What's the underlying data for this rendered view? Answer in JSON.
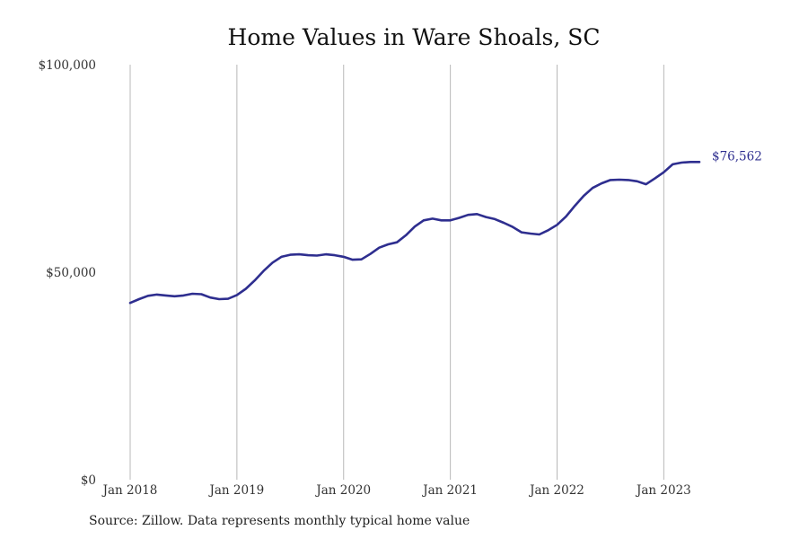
{
  "title": "Home Values in Ware Shoals, SC",
  "source": "Source: Zillow. Data represents monthly typical home value",
  "colors": {
    "line": "#2e2e8f",
    "grid": "#b8b8b8",
    "end_label": "#2e2e8f"
  },
  "chart_data": {
    "type": "line",
    "title": "Home Values in Ware Shoals, SC",
    "xlabel": "",
    "ylabel": "",
    "ylim": [
      0,
      100000
    ],
    "xlim": [
      "2018-01",
      "2023-05"
    ],
    "y_ticks": [
      {
        "value": 0,
        "label": "$0"
      },
      {
        "value": 50000,
        "label": "$50,000"
      },
      {
        "value": 100000,
        "label": "$100,000"
      }
    ],
    "x_ticks": [
      {
        "date": "2018-01",
        "label": "Jan 2018"
      },
      {
        "date": "2019-01",
        "label": "Jan 2019"
      },
      {
        "date": "2020-01",
        "label": "Jan 2020"
      },
      {
        "date": "2021-01",
        "label": "Jan 2021"
      },
      {
        "date": "2022-01",
        "label": "Jan 2022"
      },
      {
        "date": "2023-01",
        "label": "Jan 2023"
      }
    ],
    "grid": "vertical",
    "end_label": "$76,562",
    "series": [
      {
        "x": [
          "2018-01",
          "2018-02",
          "2018-03",
          "2018-04",
          "2018-05",
          "2018-06",
          "2018-07",
          "2018-08",
          "2018-09",
          "2018-10",
          "2018-11",
          "2018-12",
          "2019-01",
          "2019-02",
          "2019-03",
          "2019-04",
          "2019-05",
          "2019-06",
          "2019-07",
          "2019-08",
          "2019-09",
          "2019-10",
          "2019-11",
          "2019-12",
          "2020-01",
          "2020-02",
          "2020-03",
          "2020-04",
          "2020-05",
          "2020-06",
          "2020-07",
          "2020-08",
          "2020-09",
          "2020-10",
          "2020-11",
          "2020-12",
          "2021-01",
          "2021-02",
          "2021-03",
          "2021-04",
          "2021-05",
          "2021-06",
          "2021-07",
          "2021-08",
          "2021-09",
          "2021-10",
          "2021-11",
          "2021-12",
          "2022-01",
          "2022-02",
          "2022-03",
          "2022-04",
          "2022-05",
          "2022-06",
          "2022-07",
          "2022-08",
          "2022-09",
          "2022-10",
          "2022-11",
          "2022-12",
          "2023-01",
          "2023-02",
          "2023-03",
          "2023-04",
          "2023-05"
        ],
        "values": [
          42600,
          43500,
          44300,
          44600,
          44400,
          44200,
          44400,
          44800,
          44700,
          43900,
          43500,
          43600,
          44500,
          46000,
          48000,
          50300,
          52300,
          53700,
          54200,
          54300,
          54100,
          54000,
          54300,
          54100,
          53700,
          53000,
          53100,
          54400,
          55900,
          56700,
          57200,
          58900,
          61000,
          62500,
          62900,
          62500,
          62500,
          63100,
          63800,
          64000,
          63300,
          62800,
          61900,
          60900,
          59600,
          59300,
          59100,
          60100,
          61400,
          63400,
          66000,
          68400,
          70300,
          71400,
          72200,
          72300,
          72200,
          71900,
          71200,
          72600,
          74100,
          76000,
          76400,
          76562,
          76562
        ]
      }
    ]
  }
}
